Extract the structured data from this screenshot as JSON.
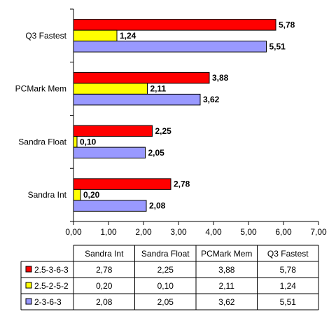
{
  "chart_data": {
    "type": "bar",
    "orientation": "horizontal",
    "categories": [
      "Sandra Int",
      "Sandra Float",
      "PCMark Mem",
      "Q3 Fastest"
    ],
    "series": [
      {
        "name": "2.5-3-6-3",
        "color": "#ff0000",
        "values": [
          2.78,
          2.25,
          3.88,
          5.78
        ],
        "labels": [
          "2,78",
          "2,25",
          "3,88",
          "5,78"
        ]
      },
      {
        "name": "2.5-2-5-2",
        "color": "#ffff00",
        "values": [
          0.2,
          0.1,
          2.11,
          1.24
        ],
        "labels": [
          "0,20",
          "0,10",
          "2,11",
          "1,24"
        ]
      },
      {
        "name": "2-3-6-3",
        "color": "#9999ff",
        "values": [
          2.08,
          2.05,
          3.62,
          5.51
        ],
        "labels": [
          "2,08",
          "2,05",
          "3,62",
          "5,51"
        ]
      }
    ],
    "xlim": [
      0,
      7
    ],
    "xticks": [
      "0,00",
      "1,00",
      "2,00",
      "3,00",
      "4,00",
      "5,00",
      "6,00",
      "7,00"
    ],
    "grid": false,
    "legend": "data table below chart"
  }
}
